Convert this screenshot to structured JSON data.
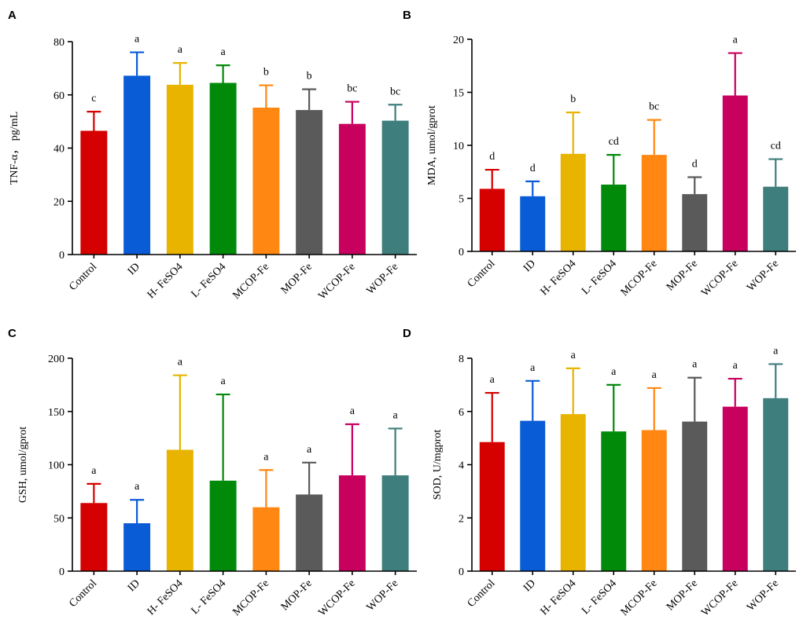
{
  "colors": [
    "#d50000",
    "#0a5bd6",
    "#e8b400",
    "#018a0a",
    "#ff8712",
    "#5a5a5a",
    "#c8005e",
    "#3e7e7d"
  ],
  "chart_data": [
    {
      "type": "bar",
      "panel": "A",
      "categories": [
        "Control",
        "ID",
        "H- FeSO4",
        "L- FeSO4",
        "MCOP-Fe",
        "MOP-Fe",
        "WCOP-Fe",
        "WOP-Fe"
      ],
      "values": [
        46.5,
        67.2,
        63.8,
        64.5,
        55.2,
        54.3,
        49.1,
        50.3
      ],
      "errors": [
        7.2,
        8.8,
        8.2,
        6.6,
        8.4,
        7.8,
        8.3,
        6.0
      ],
      "labels": [
        "c",
        "a",
        "a",
        "a",
        "b",
        "b",
        "bc",
        "bc"
      ],
      "ylabel": "TNF-α， pg/mL",
      "ylim": [
        0,
        80
      ],
      "yticks": [
        0,
        20,
        40,
        60,
        80
      ]
    },
    {
      "type": "bar",
      "panel": "B",
      "categories": [
        "Control",
        "ID",
        "H- FeSO4",
        "L- FeSO4",
        "MCOP-Fe",
        "MOP-Fe",
        "WCOP-Fe",
        "WOP-Fe"
      ],
      "values": [
        5.9,
        5.2,
        9.2,
        6.3,
        9.1,
        5.4,
        14.7,
        6.1
      ],
      "errors": [
        1.8,
        1.4,
        3.9,
        2.8,
        3.3,
        1.6,
        4.0,
        2.6
      ],
      "labels": [
        "d",
        "d",
        "b",
        "cd",
        "bc",
        "d",
        "a",
        "cd"
      ],
      "ylabel": "MDA, umol/gprot",
      "ylim": [
        0,
        20
      ],
      "yticks": [
        0,
        5,
        10,
        15,
        20
      ]
    },
    {
      "type": "bar",
      "panel": "C",
      "categories": [
        "Control",
        "ID",
        "H- FeSO4",
        "L- FeSO4",
        "MCOP-Fe",
        "MOP-Fe",
        "WCOP-Fe",
        "WOP-Fe"
      ],
      "values": [
        64,
        45,
        114,
        85,
        60,
        72,
        90,
        90
      ],
      "errors": [
        18,
        22,
        70,
        81,
        35,
        30,
        48,
        44
      ],
      "labels": [
        "a",
        "a",
        "a",
        "a",
        "a",
        "a",
        "a",
        "a"
      ],
      "ylabel": "GSH, umol/gprot",
      "ylim": [
        0,
        200
      ],
      "yticks": [
        0,
        50,
        100,
        150,
        200
      ]
    },
    {
      "type": "bar",
      "panel": "D",
      "categories": [
        "Control",
        "ID",
        "H- FeSO4",
        "L- FeSO4",
        "MCOP-Fe",
        "MOP-Fe",
        "WCOP-Fe",
        "WOP-Fe"
      ],
      "values": [
        4.85,
        5.65,
        5.9,
        5.25,
        5.3,
        5.62,
        6.18,
        6.5
      ],
      "errors": [
        1.85,
        1.5,
        1.72,
        1.75,
        1.58,
        1.65,
        1.05,
        1.28
      ],
      "labels": [
        "a",
        "a",
        "a",
        "a",
        "a",
        "a",
        "a",
        "a"
      ],
      "ylabel": "SOD, U/mgprot",
      "ylim": [
        0,
        8
      ],
      "yticks": [
        0,
        2,
        4,
        6,
        8
      ]
    }
  ]
}
